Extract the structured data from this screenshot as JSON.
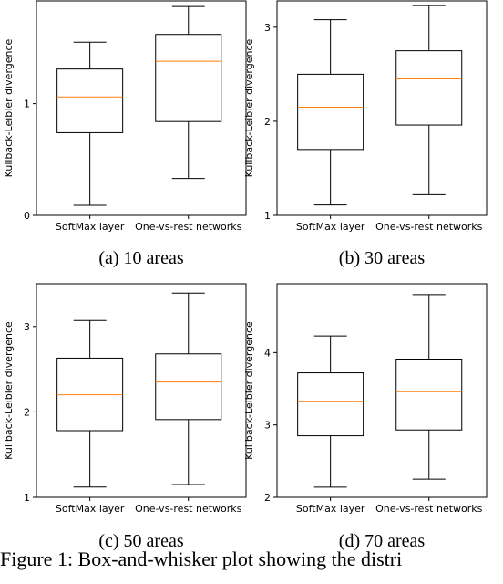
{
  "panels": [
    {
      "caption": "(a) 10 areas"
    },
    {
      "caption": "(b) 30 areas"
    },
    {
      "caption": "(c) 50 areas"
    },
    {
      "caption": "(d) 70 areas"
    }
  ],
  "figure_caption": "Figure 1: Box-and-whisker plot showing the distri",
  "colors": {
    "box": "#000000",
    "median": "#ff7f0e"
  },
  "chart_data": [
    {
      "type": "box",
      "ylabel": "Kullback-Leibler divergence",
      "categories": [
        "SoftMax layer",
        "One-vs-rest networks"
      ],
      "ylim": [
        0,
        1.92
      ],
      "yticks": [
        0,
        1
      ],
      "boxes": [
        {
          "whisker_low": 0.09,
          "q1": 0.74,
          "median": 1.06,
          "q3": 1.31,
          "whisker_high": 1.55
        },
        {
          "whisker_low": 0.33,
          "q1": 0.84,
          "median": 1.38,
          "q3": 1.62,
          "whisker_high": 1.87
        }
      ]
    },
    {
      "type": "box",
      "ylabel": "Kullback-Leibler divergence",
      "categories": [
        "SoftMax layer",
        "One-vs-rest networks"
      ],
      "ylim": [
        1.0,
        3.28
      ],
      "yticks": [
        1,
        2,
        3
      ],
      "boxes": [
        {
          "whisker_low": 1.11,
          "q1": 1.7,
          "median": 2.15,
          "q3": 2.5,
          "whisker_high": 3.08
        },
        {
          "whisker_low": 1.22,
          "q1": 1.96,
          "median": 2.45,
          "q3": 2.75,
          "whisker_high": 3.23
        }
      ]
    },
    {
      "type": "box",
      "ylabel": "Kullback-Leibler divergence",
      "categories": [
        "SoftMax layer",
        "One-vs-rest networks"
      ],
      "ylim": [
        1.0,
        3.5
      ],
      "yticks": [
        1,
        2,
        3
      ],
      "boxes": [
        {
          "whisker_low": 1.12,
          "q1": 1.78,
          "median": 2.2,
          "q3": 2.63,
          "whisker_high": 3.07
        },
        {
          "whisker_low": 1.15,
          "q1": 1.91,
          "median": 2.35,
          "q3": 2.68,
          "whisker_high": 3.39
        }
      ]
    },
    {
      "type": "box",
      "ylabel": "Kullback-Leibler divergence",
      "categories": [
        "SoftMax layer",
        "One-vs-rest networks"
      ],
      "ylim": [
        2.0,
        4.95
      ],
      "yticks": [
        2,
        3,
        4
      ],
      "boxes": [
        {
          "whisker_low": 2.14,
          "q1": 2.85,
          "median": 3.32,
          "q3": 3.72,
          "whisker_high": 4.23
        },
        {
          "whisker_low": 2.25,
          "q1": 2.93,
          "median": 3.46,
          "q3": 3.91,
          "whisker_high": 4.8
        }
      ]
    }
  ]
}
